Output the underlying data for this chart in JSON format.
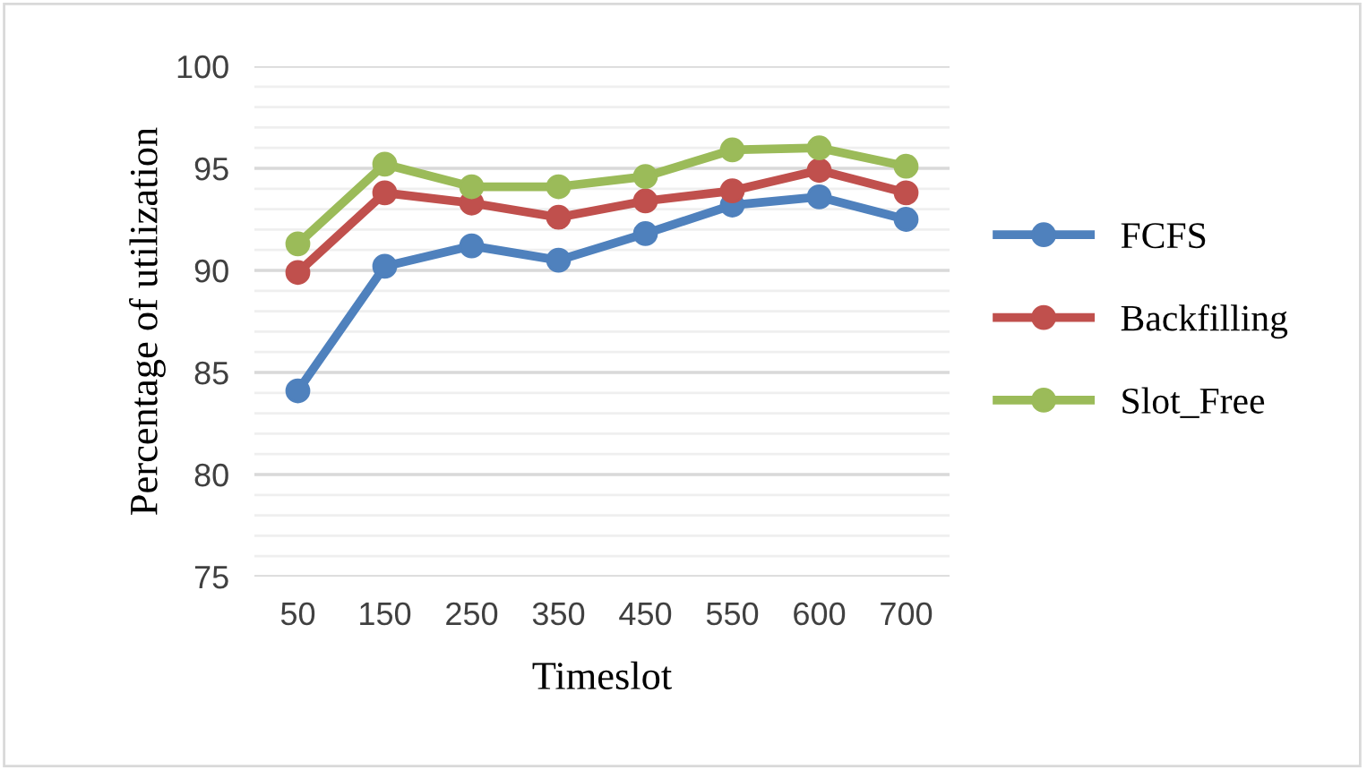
{
  "chart_data": {
    "type": "line",
    "xlabel": "Timeslot",
    "ylabel": "Percentage of utilization",
    "categories": [
      "50",
      "150",
      "250",
      "350",
      "450",
      "550",
      "600",
      "700"
    ],
    "series": [
      {
        "name": "FCFS",
        "color": "#4f81bd",
        "values": [
          84.1,
          90.2,
          91.2,
          90.5,
          91.8,
          93.2,
          93.6,
          92.5
        ]
      },
      {
        "name": "Backfilling",
        "color": "#c0504d",
        "values": [
          89.9,
          93.8,
          93.3,
          92.6,
          93.4,
          93.9,
          94.9,
          93.8
        ]
      },
      {
        "name": "Slot_Free",
        "color": "#9bbb59",
        "values": [
          91.3,
          95.2,
          94.1,
          94.1,
          94.6,
          95.9,
          96.0,
          95.1
        ]
      }
    ],
    "ylim": [
      75,
      100
    ],
    "yticks": [
      75,
      {
        "value": 76,
        "label": null
      },
      {
        "value": 77,
        "label": null
      },
      {
        "value": 78,
        "label": null
      },
      {
        "value": 79,
        "label": null
      },
      80,
      {
        "value": 81,
        "label": null
      },
      {
        "value": 82,
        "label": null
      },
      {
        "value": 83,
        "label": null
      },
      {
        "value": 84,
        "label": null
      },
      85,
      {
        "value": 86,
        "label": null
      },
      {
        "value": 87,
        "label": null
      },
      {
        "value": 88,
        "label": null
      },
      {
        "value": 89,
        "label": null
      },
      90,
      {
        "value": 91,
        "label": null
      },
      {
        "value": 92,
        "label": null
      },
      {
        "value": 93,
        "label": null
      },
      {
        "value": 94,
        "label": null
      },
      95,
      {
        "value": 96,
        "label": null
      },
      {
        "value": 97,
        "label": null
      },
      {
        "value": 98,
        "label": null
      },
      {
        "value": 99,
        "label": null
      },
      100
    ],
    "grid": "y",
    "legend": "right",
    "marker": "circle",
    "line_style": "solid"
  }
}
